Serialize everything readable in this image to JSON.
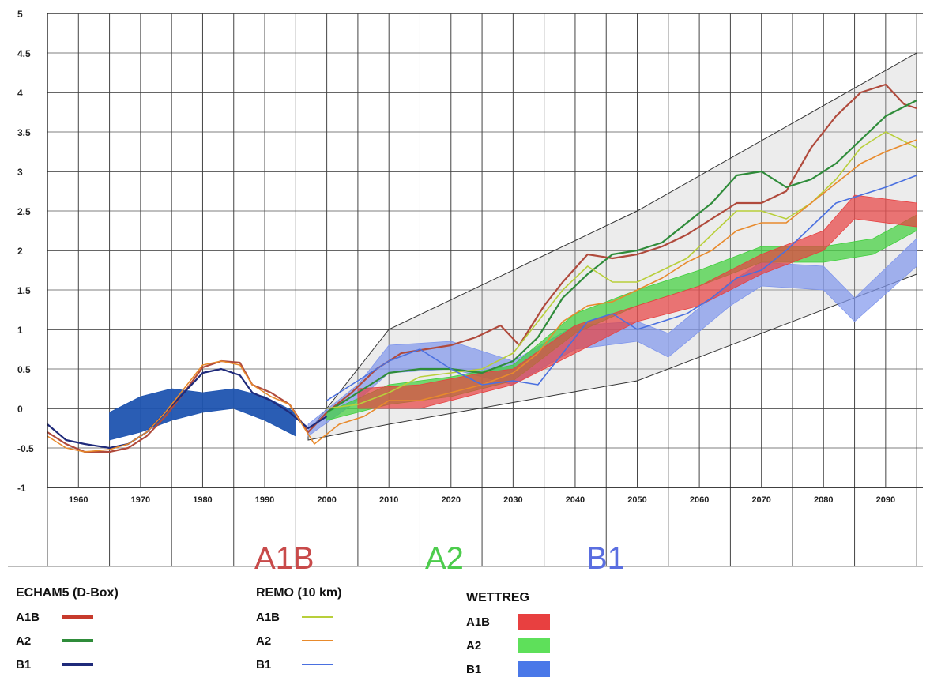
{
  "chart_data": {
    "type": "line",
    "title": "",
    "xlabel": "",
    "ylabel": "",
    "xlim": [
      1955,
      2096
    ],
    "ylim": [
      -1,
      5
    ],
    "y_ticks": [
      "-1",
      "-0.5",
      "0",
      "0.5",
      "1",
      "1.5",
      "2",
      "2.5",
      "3",
      "3.5",
      "4",
      "4.5",
      "5"
    ],
    "x_ticks": [
      "1960",
      "1970",
      "1980",
      "1990",
      "2000",
      "2010",
      "2020",
      "2030",
      "2040",
      "2050",
      "2060",
      "2070",
      "2080",
      "2090"
    ],
    "grid": true,
    "scenario_labels": [
      "A1B",
      "A2",
      "B1"
    ],
    "envelope": {
      "upper": [
        [
          1997,
          -0.3
        ],
        [
          2010,
          1.0
        ],
        [
          2050,
          2.5
        ],
        [
          2095,
          4.5
        ]
      ],
      "lower": [
        [
          1997,
          -0.4
        ],
        [
          2010,
          -0.2
        ],
        [
          2050,
          0.35
        ],
        [
          2095,
          1.7
        ]
      ]
    },
    "series": [
      {
        "group": "ECHAM5 (D-Box)",
        "name": "A1B",
        "color": "#b04a3c",
        "width": 2.2,
        "points": [
          [
            1955,
            -0.3
          ],
          [
            1958,
            -0.45
          ],
          [
            1961,
            -0.55
          ],
          [
            1965,
            -0.55
          ],
          [
            1968,
            -0.5
          ],
          [
            1971,
            -0.35
          ],
          [
            1974,
            -0.1
          ],
          [
            1977,
            0.2
          ],
          [
            1980,
            0.52
          ],
          [
            1983,
            0.6
          ],
          [
            1986,
            0.58
          ],
          [
            1988,
            0.3
          ],
          [
            1991,
            0.2
          ],
          [
            1994,
            0.05
          ],
          [
            1997,
            -0.3
          ],
          [
            2000,
            -0.05
          ],
          [
            2004,
            0.2
          ],
          [
            2008,
            0.5
          ],
          [
            2012,
            0.7
          ],
          [
            2016,
            0.75
          ],
          [
            2020,
            0.8
          ],
          [
            2024,
            0.9
          ],
          [
            2028,
            1.05
          ],
          [
            2031,
            0.8
          ],
          [
            2035,
            1.3
          ],
          [
            2038,
            1.6
          ],
          [
            2042,
            1.95
          ],
          [
            2046,
            1.9
          ],
          [
            2050,
            1.95
          ],
          [
            2054,
            2.05
          ],
          [
            2058,
            2.2
          ],
          [
            2062,
            2.4
          ],
          [
            2066,
            2.6
          ],
          [
            2070,
            2.6
          ],
          [
            2074,
            2.75
          ],
          [
            2078,
            3.3
          ],
          [
            2082,
            3.7
          ],
          [
            2086,
            4.0
          ],
          [
            2090,
            4.1
          ],
          [
            2093,
            3.85
          ],
          [
            2095,
            3.8
          ]
        ]
      },
      {
        "group": "ECHAM5 (D-Box)",
        "name": "A2",
        "color": "#2f8c3a",
        "width": 2.2,
        "points": [
          [
            2000,
            -0.05
          ],
          [
            2005,
            0.2
          ],
          [
            2010,
            0.45
          ],
          [
            2015,
            0.5
          ],
          [
            2020,
            0.5
          ],
          [
            2025,
            0.45
          ],
          [
            2030,
            0.6
          ],
          [
            2034,
            0.9
          ],
          [
            2038,
            1.4
          ],
          [
            2042,
            1.7
          ],
          [
            2046,
            1.95
          ],
          [
            2050,
            2.0
          ],
          [
            2054,
            2.1
          ],
          [
            2058,
            2.35
          ],
          [
            2062,
            2.6
          ],
          [
            2066,
            2.95
          ],
          [
            2070,
            3.0
          ],
          [
            2074,
            2.8
          ],
          [
            2078,
            2.9
          ],
          [
            2082,
            3.1
          ],
          [
            2086,
            3.4
          ],
          [
            2090,
            3.7
          ],
          [
            2095,
            3.9
          ]
        ]
      },
      {
        "group": "ECHAM5 (D-Box)",
        "name": "B1",
        "color": "#1f2a7a",
        "width": 2.2,
        "points": [
          [
            1955,
            -0.2
          ],
          [
            1958,
            -0.4
          ],
          [
            1961,
            -0.45
          ],
          [
            1965,
            -0.5
          ],
          [
            1968,
            -0.45
          ],
          [
            1971,
            -0.3
          ],
          [
            1974,
            -0.05
          ],
          [
            1977,
            0.2
          ],
          [
            1980,
            0.45
          ],
          [
            1983,
            0.5
          ],
          [
            1986,
            0.42
          ],
          [
            1988,
            0.2
          ],
          [
            1991,
            0.1
          ],
          [
            1994,
            -0.05
          ],
          [
            1997,
            -0.25
          ],
          [
            2000,
            -0.1
          ]
        ]
      },
      {
        "group": "REMO (10 km)",
        "name": "A1B",
        "color": "#b8cf3a",
        "width": 1.6,
        "points": [
          [
            2000,
            0.0
          ],
          [
            2005,
            0.05
          ],
          [
            2010,
            0.2
          ],
          [
            2015,
            0.4
          ],
          [
            2020,
            0.45
          ],
          [
            2025,
            0.5
          ],
          [
            2030,
            0.7
          ],
          [
            2034,
            1.1
          ],
          [
            2038,
            1.5
          ],
          [
            2042,
            1.8
          ],
          [
            2046,
            1.6
          ],
          [
            2050,
            1.6
          ],
          [
            2054,
            1.75
          ],
          [
            2058,
            1.9
          ],
          [
            2062,
            2.2
          ],
          [
            2066,
            2.5
          ],
          [
            2070,
            2.5
          ],
          [
            2074,
            2.4
          ],
          [
            2078,
            2.6
          ],
          [
            2082,
            2.9
          ],
          [
            2086,
            3.3
          ],
          [
            2090,
            3.5
          ],
          [
            2095,
            3.3
          ]
        ]
      },
      {
        "group": "REMO (10 km)",
        "name": "A2",
        "color": "#e88a2c",
        "width": 1.6,
        "points": [
          [
            1955,
            -0.35
          ],
          [
            1958,
            -0.5
          ],
          [
            1961,
            -0.55
          ],
          [
            1965,
            -0.52
          ],
          [
            1968,
            -0.45
          ],
          [
            1971,
            -0.3
          ],
          [
            1974,
            -0.05
          ],
          [
            1977,
            0.25
          ],
          [
            1980,
            0.55
          ],
          [
            1983,
            0.6
          ],
          [
            1986,
            0.55
          ],
          [
            1988,
            0.3
          ],
          [
            1991,
            0.15
          ],
          [
            1994,
            0.05
          ],
          [
            1998,
            -0.45
          ],
          [
            2002,
            -0.2
          ],
          [
            2006,
            -0.1
          ],
          [
            2010,
            0.1
          ],
          [
            2015,
            0.1
          ],
          [
            2020,
            0.2
          ],
          [
            2025,
            0.3
          ],
          [
            2030,
            0.45
          ],
          [
            2034,
            0.7
          ],
          [
            2038,
            1.1
          ],
          [
            2042,
            1.3
          ],
          [
            2046,
            1.35
          ],
          [
            2050,
            1.5
          ],
          [
            2054,
            1.65
          ],
          [
            2058,
            1.85
          ],
          [
            2062,
            2.0
          ],
          [
            2066,
            2.25
          ],
          [
            2070,
            2.35
          ],
          [
            2074,
            2.35
          ],
          [
            2078,
            2.6
          ],
          [
            2082,
            2.85
          ],
          [
            2086,
            3.1
          ],
          [
            2090,
            3.25
          ],
          [
            2095,
            3.4
          ]
        ]
      },
      {
        "group": "REMO (10 km)",
        "name": "B1",
        "color": "#4a70e0",
        "width": 1.6,
        "points": [
          [
            2000,
            0.1
          ],
          [
            2005,
            0.35
          ],
          [
            2010,
            0.6
          ],
          [
            2015,
            0.75
          ],
          [
            2020,
            0.5
          ],
          [
            2025,
            0.3
          ],
          [
            2030,
            0.35
          ],
          [
            2034,
            0.3
          ],
          [
            2038,
            0.7
          ],
          [
            2042,
            1.1
          ],
          [
            2046,
            1.2
          ],
          [
            2050,
            1.0
          ],
          [
            2054,
            1.1
          ],
          [
            2058,
            1.2
          ],
          [
            2062,
            1.4
          ],
          [
            2066,
            1.65
          ],
          [
            2070,
            1.75
          ],
          [
            2074,
            2.0
          ],
          [
            2078,
            2.3
          ],
          [
            2082,
            2.6
          ],
          [
            2086,
            2.7
          ],
          [
            2090,
            2.8
          ],
          [
            2095,
            2.95
          ]
        ]
      }
    ],
    "bands": [
      {
        "group": "ECHAM5 (D-Box)",
        "name": "B1 range",
        "color": "#1f54b0",
        "upper": [
          [
            1965,
            -0.05
          ],
          [
            1970,
            0.15
          ],
          [
            1975,
            0.25
          ],
          [
            1980,
            0.2
          ],
          [
            1985,
            0.25
          ],
          [
            1990,
            0.15
          ],
          [
            1995,
            -0.05
          ]
        ],
        "lower": [
          [
            1965,
            -0.4
          ],
          [
            1970,
            -0.3
          ],
          [
            1975,
            -0.15
          ],
          [
            1980,
            -0.05
          ],
          [
            1985,
            0.0
          ],
          [
            1990,
            -0.15
          ],
          [
            1995,
            -0.35
          ]
        ]
      },
      {
        "group": "WETTREG",
        "name": "B1",
        "color": "#7f96ec",
        "upper": [
          [
            1997,
            -0.2
          ],
          [
            2005,
            0.3
          ],
          [
            2010,
            0.8
          ],
          [
            2020,
            0.85
          ],
          [
            2030,
            0.6
          ],
          [
            2040,
            1.05
          ],
          [
            2050,
            1.1
          ],
          [
            2055,
            0.95
          ],
          [
            2065,
            1.6
          ],
          [
            2070,
            1.85
          ],
          [
            2080,
            1.8
          ],
          [
            2085,
            1.4
          ],
          [
            2095,
            2.15
          ]
        ],
        "lower": [
          [
            1997,
            -0.35
          ],
          [
            2005,
            0.1
          ],
          [
            2010,
            0.45
          ],
          [
            2020,
            0.5
          ],
          [
            2030,
            0.3
          ],
          [
            2040,
            0.75
          ],
          [
            2050,
            0.85
          ],
          [
            2055,
            0.65
          ],
          [
            2065,
            1.3
          ],
          [
            2070,
            1.55
          ],
          [
            2080,
            1.5
          ],
          [
            2085,
            1.1
          ],
          [
            2095,
            1.8
          ]
        ]
      },
      {
        "group": "WETTREG",
        "name": "A2",
        "color": "#3ed03a",
        "upper": [
          [
            2000,
            -0.05
          ],
          [
            2010,
            0.3
          ],
          [
            2020,
            0.4
          ],
          [
            2030,
            0.55
          ],
          [
            2040,
            1.2
          ],
          [
            2050,
            1.5
          ],
          [
            2060,
            1.75
          ],
          [
            2070,
            2.05
          ],
          [
            2080,
            2.05
          ],
          [
            2088,
            2.15
          ],
          [
            2095,
            2.45
          ]
        ],
        "lower": [
          [
            2000,
            -0.15
          ],
          [
            2010,
            0.05
          ],
          [
            2020,
            0.15
          ],
          [
            2030,
            0.35
          ],
          [
            2040,
            0.95
          ],
          [
            2050,
            1.3
          ],
          [
            2060,
            1.55
          ],
          [
            2070,
            1.85
          ],
          [
            2080,
            1.85
          ],
          [
            2088,
            1.95
          ],
          [
            2095,
            2.25
          ]
        ]
      },
      {
        "group": "WETTREG",
        "name": "A1B",
        "color": "#e84040",
        "upper": [
          [
            2005,
            0.25
          ],
          [
            2015,
            0.3
          ],
          [
            2025,
            0.45
          ],
          [
            2030,
            0.5
          ],
          [
            2040,
            1.05
          ],
          [
            2050,
            1.3
          ],
          [
            2060,
            1.55
          ],
          [
            2070,
            1.95
          ],
          [
            2080,
            2.25
          ],
          [
            2085,
            2.7
          ],
          [
            2095,
            2.6
          ]
        ],
        "lower": [
          [
            2005,
            0.0
          ],
          [
            2015,
            0.0
          ],
          [
            2025,
            0.2
          ],
          [
            2030,
            0.3
          ],
          [
            2040,
            0.7
          ],
          [
            2050,
            1.1
          ],
          [
            2060,
            1.3
          ],
          [
            2070,
            1.7
          ],
          [
            2080,
            2.0
          ],
          [
            2085,
            2.4
          ],
          [
            2095,
            2.3
          ]
        ]
      }
    ],
    "legend": {
      "placement": "bottom",
      "groups": [
        {
          "title": "ECHAM5 (D-Box)",
          "style": "thick-line",
          "items": [
            {
              "label": "A1B",
              "color": "#c73a2c"
            },
            {
              "label": "A2",
              "color": "#2f8c3a"
            },
            {
              "label": "B1",
              "color": "#1f2a7a"
            }
          ]
        },
        {
          "title": "REMO (10 km)",
          "style": "thin-line",
          "items": [
            {
              "label": "A1B",
              "color": "#b8cf3a"
            },
            {
              "label": "A2",
              "color": "#e88a2c"
            },
            {
              "label": "B1",
              "color": "#4a70e0"
            }
          ]
        },
        {
          "title": "WETTREG",
          "style": "box",
          "items": [
            {
              "label": "A1B",
              "color": "#e84040"
            },
            {
              "label": "A2",
              "color": "#5ee05a"
            },
            {
              "label": "B1",
              "color": "#4a78e8"
            }
          ]
        }
      ]
    }
  },
  "colors": {
    "scenario_a1b": "#c84a4a",
    "scenario_a2": "#4ccc4c",
    "scenario_b1": "#5a6ee0"
  }
}
